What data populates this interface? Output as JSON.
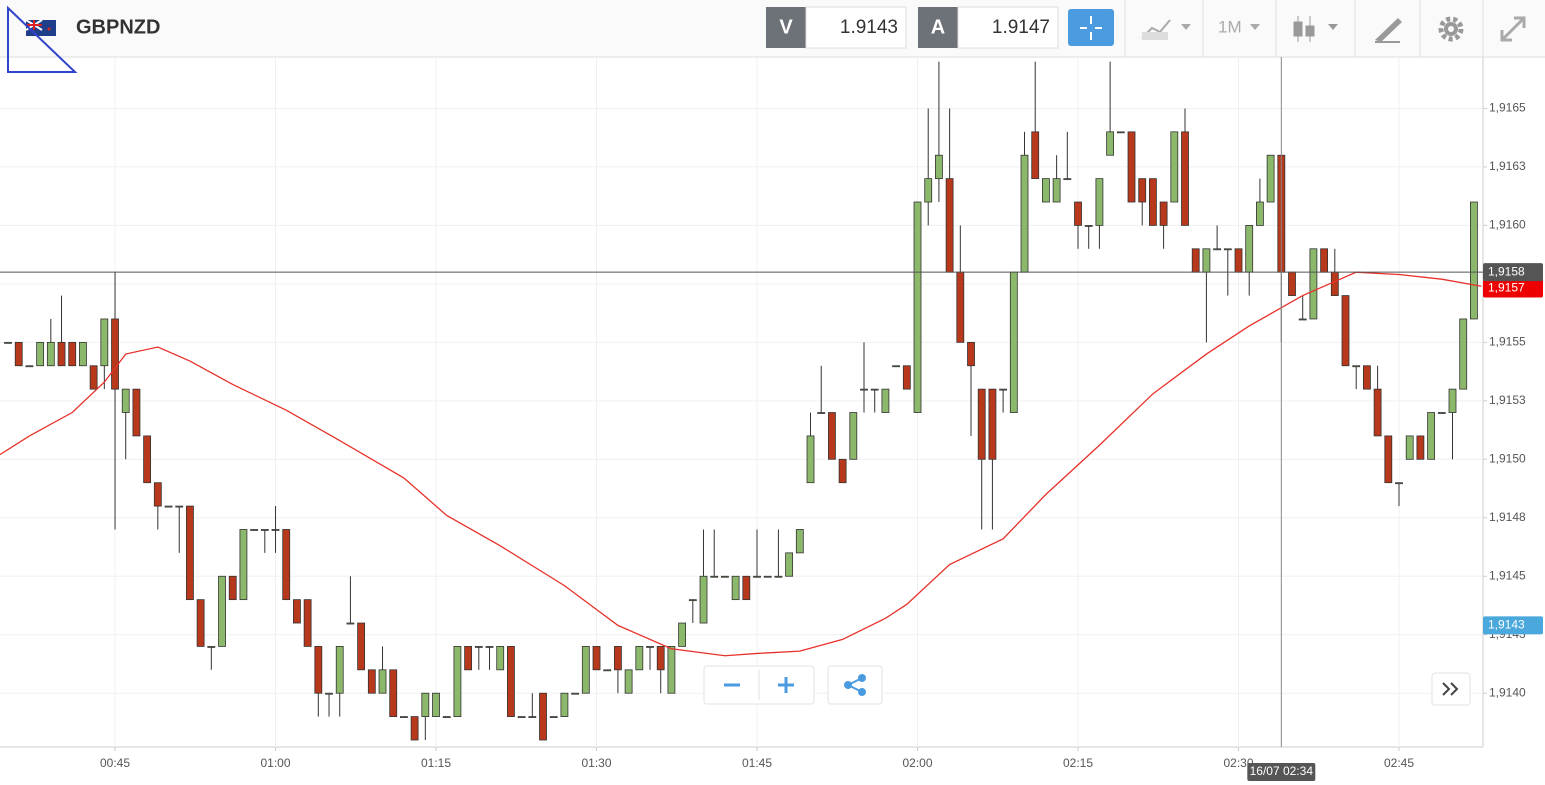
{
  "toolbar": {
    "symbol": "GBPNZD",
    "bid_label": "V",
    "bid": "1.9143",
    "ask_label": "A",
    "ask": "1.9147",
    "timeframe": "1M"
  },
  "chart_data": {
    "type": "candlestick",
    "up_color": "#8cb86b",
    "down_color": "#b8381c",
    "xlim": [
      -0.75,
      137.85
    ],
    "ylim": [
      1.91377,
      1.91672
    ],
    "xticks": [
      {
        "value": 10,
        "label": "00:45"
      },
      {
        "value": 25,
        "label": "01:00"
      },
      {
        "value": 40,
        "label": "01:15"
      },
      {
        "value": 55,
        "label": "01:30"
      },
      {
        "value": 70,
        "label": "01:45"
      },
      {
        "value": 85,
        "label": "02:00"
      },
      {
        "value": 100,
        "label": "02:15"
      },
      {
        "value": 115,
        "label": "02:30"
      },
      {
        "value": 130,
        "label": "02:45"
      }
    ],
    "yticks": [
      {
        "value": 1.914,
        "label": "1,9140"
      },
      {
        "value": 1.91425,
        "label": "1,9143"
      },
      {
        "value": 1.9145,
        "label": "1,9145"
      },
      {
        "value": 1.91475,
        "label": "1,9148"
      },
      {
        "value": 1.915,
        "label": "1,9150"
      },
      {
        "value": 1.91525,
        "label": "1,9153"
      },
      {
        "value": 1.9155,
        "label": "1,9155"
      },
      {
        "value": 1.91575,
        "label": "1,9158"
      },
      {
        "value": 1.916,
        "label": "1,9160"
      },
      {
        "value": 1.91625,
        "label": "1,9163"
      },
      {
        "value": 1.9165,
        "label": "1,9165"
      }
    ],
    "grid": true,
    "candles": [
      [
        1.9155,
        1.9155,
        1.9155,
        1.9155
      ],
      [
        1.9155,
        1.9155,
        1.9154,
        1.9154
      ],
      [
        1.9154,
        1.9154,
        1.9154,
        1.9154
      ],
      [
        1.9154,
        1.9155,
        1.9154,
        1.9155
      ],
      [
        1.9154,
        1.9156,
        1.9154,
        1.9155
      ],
      [
        1.9155,
        1.9157,
        1.9154,
        1.9154
      ],
      [
        1.9155,
        1.9155,
        1.9154,
        1.9154
      ],
      [
        1.9154,
        1.9155,
        1.9154,
        1.9155
      ],
      [
        1.9154,
        1.9154,
        1.9153,
        1.9153
      ],
      [
        1.9154,
        1.9156,
        1.9153,
        1.9156
      ],
      [
        1.9156,
        1.9158,
        1.9147,
        1.9153
      ],
      [
        1.9152,
        1.9153,
        1.915,
        1.9153
      ],
      [
        1.9153,
        1.9153,
        1.9151,
        1.9151
      ],
      [
        1.9151,
        1.9151,
        1.9149,
        1.9149
      ],
      [
        1.9149,
        1.9149,
        1.9147,
        1.9148
      ],
      [
        1.9148,
        1.9148,
        1.9148,
        1.9148
      ],
      [
        1.9148,
        1.9148,
        1.9146,
        1.9148
      ],
      [
        1.9148,
        1.9148,
        1.9144,
        1.9144
      ],
      [
        1.9144,
        1.9144,
        1.9142,
        1.9142
      ],
      [
        1.9142,
        1.9142,
        1.9141,
        1.9142
      ],
      [
        1.9142,
        1.9145,
        1.9142,
        1.9145
      ],
      [
        1.9145,
        1.9145,
        1.9144,
        1.9144
      ],
      [
        1.9144,
        1.9147,
        1.9144,
        1.9147
      ],
      [
        1.9147,
        1.9147,
        1.9147,
        1.9147
      ],
      [
        1.9147,
        1.9147,
        1.9146,
        1.9147
      ],
      [
        1.9147,
        1.9148,
        1.9146,
        1.9147
      ],
      [
        1.9147,
        1.9147,
        1.9144,
        1.9144
      ],
      [
        1.9144,
        1.9144,
        1.9143,
        1.9143
      ],
      [
        1.9144,
        1.9144,
        1.9142,
        1.9142
      ],
      [
        1.9142,
        1.9142,
        1.9139,
        1.914
      ],
      [
        1.914,
        1.914,
        1.9139,
        1.914
      ],
      [
        1.914,
        1.9142,
        1.9139,
        1.9142
      ],
      [
        1.9143,
        1.9145,
        1.9143,
        1.9143
      ],
      [
        1.9143,
        1.9143,
        1.9141,
        1.9141
      ],
      [
        1.9141,
        1.9141,
        1.914,
        1.914
      ],
      [
        1.914,
        1.9142,
        1.914,
        1.9141
      ],
      [
        1.9141,
        1.9141,
        1.9139,
        1.9139
      ],
      [
        1.9139,
        1.9139,
        1.9139,
        1.9139
      ],
      [
        1.9139,
        1.9139,
        1.9138,
        1.9138
      ],
      [
        1.9139,
        1.914,
        1.9138,
        1.914
      ],
      [
        1.9139,
        1.914,
        1.9139,
        1.914
      ],
      [
        1.9139,
        1.9139,
        1.9139,
        1.9139
      ],
      [
        1.9139,
        1.9142,
        1.9139,
        1.9142
      ],
      [
        1.9142,
        1.9142,
        1.9141,
        1.9141
      ],
      [
        1.9142,
        1.9142,
        1.9141,
        1.9142
      ],
      [
        1.9142,
        1.9142,
        1.9141,
        1.9142
      ],
      [
        1.9141,
        1.9142,
        1.9141,
        1.9142
      ],
      [
        1.9142,
        1.9142,
        1.9139,
        1.9139
      ],
      [
        1.9139,
        1.9139,
        1.9139,
        1.9139
      ],
      [
        1.9139,
        1.914,
        1.9139,
        1.9139
      ],
      [
        1.914,
        1.914,
        1.9138,
        1.9138
      ],
      [
        1.9139,
        1.9139,
        1.9139,
        1.9139
      ],
      [
        1.9139,
        1.914,
        1.9139,
        1.914
      ],
      [
        1.914,
        1.914,
        1.914,
        1.914
      ],
      [
        1.914,
        1.9142,
        1.914,
        1.9142
      ],
      [
        1.9142,
        1.9142,
        1.9141,
        1.9141
      ],
      [
        1.9141,
        1.9141,
        1.9141,
        1.9141
      ],
      [
        1.9142,
        1.9142,
        1.914,
        1.9141
      ],
      [
        1.914,
        1.9141,
        1.914,
        1.9141
      ],
      [
        1.9141,
        1.9142,
        1.9141,
        1.9142
      ],
      [
        1.9142,
        1.9142,
        1.9141,
        1.9142
      ],
      [
        1.9142,
        1.9142,
        1.914,
        1.9141
      ],
      [
        1.914,
        1.9142,
        1.914,
        1.9142
      ],
      [
        1.9142,
        1.9143,
        1.9142,
        1.9143
      ],
      [
        1.9144,
        1.9144,
        1.9143,
        1.9144
      ],
      [
        1.9143,
        1.9147,
        1.9143,
        1.9145
      ],
      [
        1.9145,
        1.9147,
        1.9145,
        1.9145
      ],
      [
        1.9145,
        1.9145,
        1.9145,
        1.9145
      ],
      [
        1.9144,
        1.9145,
        1.9144,
        1.9145
      ],
      [
        1.9145,
        1.9145,
        1.9144,
        1.9144
      ],
      [
        1.9145,
        1.9147,
        1.9145,
        1.9145
      ],
      [
        1.9145,
        1.9145,
        1.9145,
        1.9145
      ],
      [
        1.9145,
        1.9147,
        1.9145,
        1.9145
      ],
      [
        1.9145,
        1.9146,
        1.9145,
        1.9146
      ],
      [
        1.9146,
        1.9147,
        1.9146,
        1.9147
      ],
      [
        1.9149,
        1.9152,
        1.9149,
        1.9151
      ],
      [
        1.9152,
        1.9154,
        1.9152,
        1.9152
      ],
      [
        1.9152,
        1.9152,
        1.915,
        1.915
      ],
      [
        1.915,
        1.915,
        1.9149,
        1.9149
      ],
      [
        1.915,
        1.9152,
        1.915,
        1.9152
      ],
      [
        1.9153,
        1.9155,
        1.9152,
        1.9153
      ],
      [
        1.9153,
        1.9153,
        1.9152,
        1.9153
      ],
      [
        1.9152,
        1.9153,
        1.9152,
        1.9153
      ],
      [
        1.9154,
        1.9154,
        1.9154,
        1.9154
      ],
      [
        1.9154,
        1.9154,
        1.9153,
        1.9153
      ],
      [
        1.9152,
        1.9161,
        1.9152,
        1.9161
      ],
      [
        1.9161,
        1.9165,
        1.916,
        1.9162
      ],
      [
        1.9162,
        1.9167,
        1.9161,
        1.9163
      ],
      [
        1.9162,
        1.9165,
        1.9158,
        1.9158
      ],
      [
        1.9158,
        1.916,
        1.9155,
        1.9155
      ],
      [
        1.9155,
        1.9155,
        1.9151,
        1.9154
      ],
      [
        1.9153,
        1.9153,
        1.9147,
        1.915
      ],
      [
        1.9153,
        1.9153,
        1.9147,
        1.915
      ],
      [
        1.9153,
        1.9153,
        1.9152,
        1.9153
      ],
      [
        1.9152,
        1.9158,
        1.9152,
        1.9158
      ],
      [
        1.9158,
        1.9164,
        1.9158,
        1.9163
      ],
      [
        1.9164,
        1.9167,
        1.9162,
        1.9162
      ],
      [
        1.9161,
        1.9162,
        1.9161,
        1.9162
      ],
      [
        1.9161,
        1.9163,
        1.9161,
        1.9162
      ],
      [
        1.9162,
        1.9164,
        1.9162,
        1.9162
      ],
      [
        1.9161,
        1.9161,
        1.9159,
        1.916
      ],
      [
        1.916,
        1.916,
        1.9159,
        1.916
      ],
      [
        1.916,
        1.9162,
        1.9159,
        1.9162
      ],
      [
        1.9163,
        1.9167,
        1.9163,
        1.9164
      ],
      [
        1.9164,
        1.9164,
        1.9164,
        1.9164
      ],
      [
        1.9164,
        1.9164,
        1.9161,
        1.9161
      ],
      [
        1.9162,
        1.9162,
        1.916,
        1.9161
      ],
      [
        1.9162,
        1.9162,
        1.916,
        1.916
      ],
      [
        1.9161,
        1.9161,
        1.9159,
        1.916
      ],
      [
        1.9161,
        1.9164,
        1.9161,
        1.9164
      ],
      [
        1.9164,
        1.9165,
        1.916,
        1.916
      ],
      [
        1.9159,
        1.9159,
        1.9158,
        1.9158
      ],
      [
        1.9158,
        1.9159,
        1.9155,
        1.9159
      ],
      [
        1.9159,
        1.916,
        1.9159,
        1.9159
      ],
      [
        1.9159,
        1.9159,
        1.9157,
        1.9159
      ],
      [
        1.9159,
        1.9159,
        1.9158,
        1.9158
      ],
      [
        1.9158,
        1.916,
        1.9157,
        1.916
      ],
      [
        1.916,
        1.9162,
        1.916,
        1.9161
      ],
      [
        1.9161,
        1.9163,
        1.9161,
        1.9163
      ],
      [
        1.9163,
        1.9163,
        1.9155,
        1.9158
      ],
      [
        1.9158,
        1.9158,
        1.9157,
        1.9157
      ],
      [
        1.9156,
        1.9157,
        1.9156,
        1.9156
      ],
      [
        1.9156,
        1.9159,
        1.9156,
        1.9159
      ],
      [
        1.9159,
        1.9159,
        1.9158,
        1.9158
      ],
      [
        1.9158,
        1.9159,
        1.9157,
        1.9157
      ],
      [
        1.9157,
        1.9157,
        1.9154,
        1.9154
      ],
      [
        1.9154,
        1.9154,
        1.9153,
        1.9154
      ],
      [
        1.9154,
        1.9154,
        1.9153,
        1.9153
      ],
      [
        1.9153,
        1.9154,
        1.9151,
        1.9151
      ],
      [
        1.9151,
        1.9151,
        1.9149,
        1.9149
      ],
      [
        1.9149,
        1.9149,
        1.9148,
        1.9149
      ],
      [
        1.915,
        1.9151,
        1.915,
        1.9151
      ],
      [
        1.9151,
        1.9151,
        1.915,
        1.915
      ],
      [
        1.915,
        1.9152,
        1.915,
        1.9152
      ],
      [
        1.9152,
        1.9152,
        1.9152,
        1.9152
      ],
      [
        1.9152,
        1.9153,
        1.915,
        1.9153
      ],
      [
        1.9153,
        1.9156,
        1.9153,
        1.9156
      ],
      [
        1.9156,
        1.9161,
        1.9156,
        1.9161
      ]
    ],
    "moving_average": {
      "color": "#e8312a",
      "x": [
        -0.75,
        2,
        6,
        9,
        11,
        14,
        17,
        21,
        26,
        31,
        37,
        41,
        46,
        52,
        57,
        62,
        67,
        70,
        74,
        78,
        82,
        84,
        88,
        93,
        97,
        102,
        107,
        112,
        116,
        121,
        126,
        130,
        134,
        137.7
      ],
      "values": [
        1.91502,
        1.9151,
        1.9152,
        1.91533,
        1.91545,
        1.91548,
        1.91542,
        1.91532,
        1.91521,
        1.91508,
        1.91492,
        1.91476,
        1.91463,
        1.91446,
        1.91429,
        1.91419,
        1.91416,
        1.91417,
        1.91418,
        1.91423,
        1.91432,
        1.91438,
        1.91455,
        1.91466,
        1.91485,
        1.91506,
        1.91528,
        1.91545,
        1.91557,
        1.9157,
        1.9158,
        1.91579,
        1.91577,
        1.91574
      ]
    },
    "crosshair": {
      "price": {
        "value": 1.9158,
        "label": "1,9158"
      },
      "time": {
        "value": 119,
        "label": "16/07 02:34"
      }
    },
    "bid_marker": {
      "value": 1.91573,
      "label": "1,9157",
      "color": "#ee0000"
    },
    "ask_marker": {
      "value": 1.91429,
      "label": "1,9143",
      "color": "#4aa8dc"
    }
  }
}
